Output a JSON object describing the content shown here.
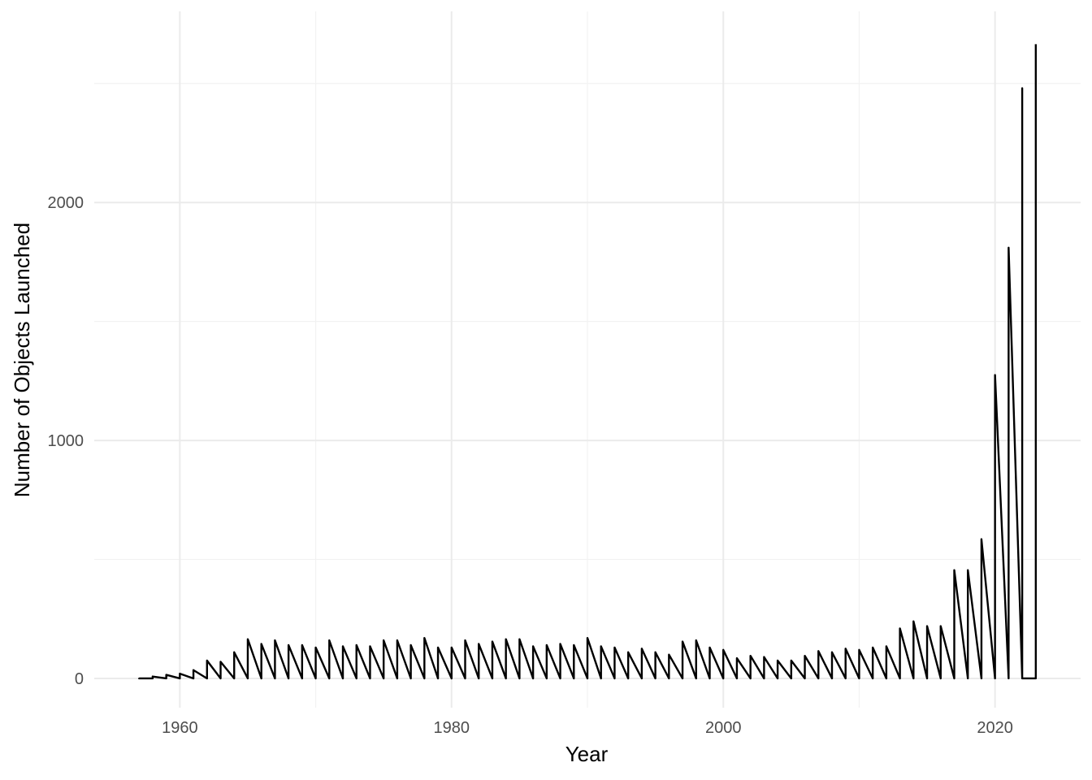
{
  "chart_data": {
    "type": "line",
    "title": "",
    "xlabel": "Year",
    "ylabel": "Number of Objects Launched",
    "xlim": [
      1953.7,
      2026.3
    ],
    "ylim": [
      -123,
      2803
    ],
    "x_ticks": [
      1960,
      1980,
      2000,
      2020
    ],
    "y_ticks": [
      0,
      1000,
      2000
    ],
    "x_minor_ticks": [
      1970,
      1990,
      2010
    ],
    "y_minor_ticks": [
      500,
      1500,
      2500
    ],
    "grid": true,
    "legend": "none",
    "line_color": "#000000",
    "points": [
      [
        1957,
        2
      ],
      [
        1957,
        0
      ],
      [
        1958,
        0
      ],
      [
        1958,
        8
      ],
      [
        1959,
        0
      ],
      [
        1959,
        15
      ],
      [
        1960,
        0
      ],
      [
        1960,
        20
      ],
      [
        1961,
        0
      ],
      [
        1961,
        35
      ],
      [
        1962,
        0
      ],
      [
        1962,
        75
      ],
      [
        1963,
        0
      ],
      [
        1963,
        70
      ],
      [
        1964,
        0
      ],
      [
        1964,
        110
      ],
      [
        1965,
        0
      ],
      [
        1965,
        165
      ],
      [
        1966,
        0
      ],
      [
        1966,
        145
      ],
      [
        1967,
        0
      ],
      [
        1967,
        160
      ],
      [
        1968,
        0
      ],
      [
        1968,
        140
      ],
      [
        1969,
        0
      ],
      [
        1969,
        140
      ],
      [
        1970,
        0
      ],
      [
        1970,
        130
      ],
      [
        1971,
        0
      ],
      [
        1971,
        160
      ],
      [
        1972,
        0
      ],
      [
        1972,
        135
      ],
      [
        1973,
        0
      ],
      [
        1973,
        140
      ],
      [
        1974,
        0
      ],
      [
        1974,
        135
      ],
      [
        1975,
        0
      ],
      [
        1975,
        160
      ],
      [
        1976,
        0
      ],
      [
        1976,
        160
      ],
      [
        1977,
        0
      ],
      [
        1977,
        140
      ],
      [
        1978,
        0
      ],
      [
        1978,
        170
      ],
      [
        1979,
        0
      ],
      [
        1979,
        130
      ],
      [
        1980,
        0
      ],
      [
        1980,
        130
      ],
      [
        1981,
        0
      ],
      [
        1981,
        160
      ],
      [
        1982,
        0
      ],
      [
        1982,
        145
      ],
      [
        1983,
        0
      ],
      [
        1983,
        155
      ],
      [
        1984,
        0
      ],
      [
        1984,
        165
      ],
      [
        1985,
        0
      ],
      [
        1985,
        165
      ],
      [
        1986,
        0
      ],
      [
        1986,
        135
      ],
      [
        1987,
        0
      ],
      [
        1987,
        140
      ],
      [
        1988,
        0
      ],
      [
        1988,
        145
      ],
      [
        1989,
        0
      ],
      [
        1989,
        140
      ],
      [
        1990,
        0
      ],
      [
        1990,
        170
      ],
      [
        1991,
        0
      ],
      [
        1991,
        135
      ],
      [
        1992,
        0
      ],
      [
        1992,
        130
      ],
      [
        1993,
        0
      ],
      [
        1993,
        110
      ],
      [
        1994,
        0
      ],
      [
        1994,
        125
      ],
      [
        1995,
        0
      ],
      [
        1995,
        110
      ],
      [
        1996,
        0
      ],
      [
        1996,
        100
      ],
      [
        1997,
        0
      ],
      [
        1997,
        155
      ],
      [
        1998,
        0
      ],
      [
        1998,
        160
      ],
      [
        1999,
        0
      ],
      [
        1999,
        130
      ],
      [
        2000,
        0
      ],
      [
        2000,
        120
      ],
      [
        2001,
        0
      ],
      [
        2001,
        85
      ],
      [
        2002,
        0
      ],
      [
        2002,
        95
      ],
      [
        2003,
        0
      ],
      [
        2003,
        90
      ],
      [
        2004,
        0
      ],
      [
        2004,
        75
      ],
      [
        2005,
        0
      ],
      [
        2005,
        75
      ],
      [
        2006,
        0
      ],
      [
        2006,
        95
      ],
      [
        2007,
        0
      ],
      [
        2007,
        115
      ],
      [
        2008,
        0
      ],
      [
        2008,
        110
      ],
      [
        2009,
        0
      ],
      [
        2009,
        125
      ],
      [
        2010,
        0
      ],
      [
        2010,
        120
      ],
      [
        2011,
        0
      ],
      [
        2011,
        130
      ],
      [
        2012,
        0
      ],
      [
        2012,
        135
      ],
      [
        2013,
        0
      ],
      [
        2013,
        210
      ],
      [
        2014,
        0
      ],
      [
        2014,
        240
      ],
      [
        2015,
        0
      ],
      [
        2015,
        220
      ],
      [
        2016,
        0
      ],
      [
        2016,
        220
      ],
      [
        2017,
        0
      ],
      [
        2017,
        455
      ],
      [
        2018,
        0
      ],
      [
        2018,
        455
      ],
      [
        2019,
        0
      ],
      [
        2019,
        585
      ],
      [
        2020,
        0
      ],
      [
        2020,
        1275
      ],
      [
        2021,
        0
      ],
      [
        2021,
        1810
      ],
      [
        2022,
        0
      ],
      [
        2022,
        2480
      ],
      [
        2022,
        0
      ],
      [
        2023,
        0
      ],
      [
        2023,
        2665
      ]
    ]
  }
}
